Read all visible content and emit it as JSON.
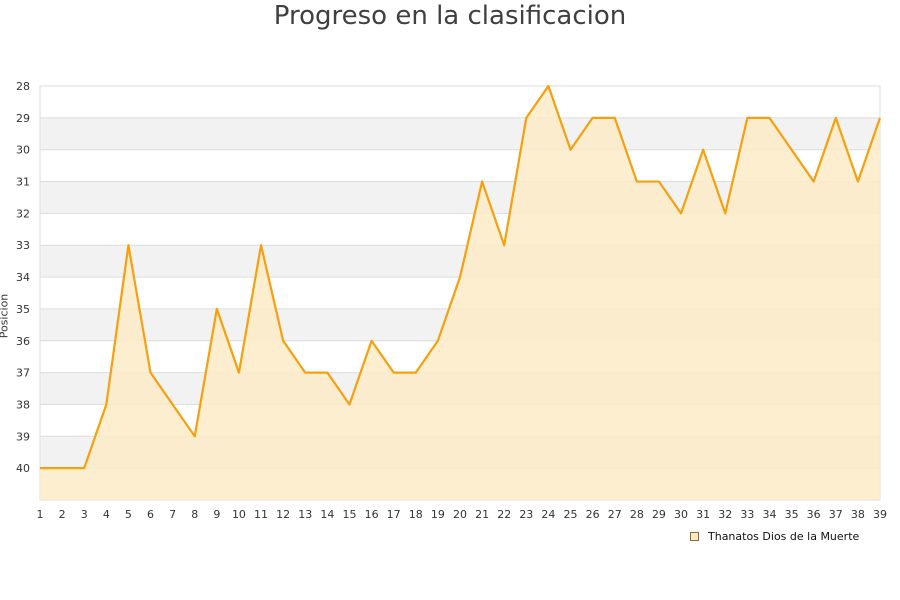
{
  "chart_data": {
    "type": "area",
    "title": "Progreso en la clasificacion",
    "ylabel": "Posicion",
    "xlabel": "",
    "y_inverted": true,
    "ylim": [
      28,
      41
    ],
    "y_ticks": [
      28,
      29,
      30,
      31,
      32,
      33,
      34,
      35,
      36,
      37,
      38,
      39,
      40
    ],
    "x": [
      1,
      2,
      3,
      4,
      5,
      6,
      7,
      8,
      9,
      10,
      11,
      12,
      13,
      14,
      15,
      16,
      17,
      18,
      19,
      20,
      21,
      22,
      23,
      24,
      25,
      26,
      27,
      28,
      29,
      30,
      31,
      32,
      33,
      34,
      35,
      36,
      37,
      38,
      39
    ],
    "series": [
      {
        "name": "Thanatos Dios de la Muerte",
        "values": [
          40,
          40,
          40,
          38,
          33,
          37,
          38,
          39,
          35,
          37,
          33,
          36,
          37,
          37,
          38,
          36,
          37,
          37,
          36,
          34,
          31,
          33,
          29,
          28,
          30,
          29,
          29,
          31,
          31,
          32,
          30,
          32,
          29,
          29,
          30,
          31,
          29,
          31,
          29
        ]
      }
    ],
    "grid": true,
    "legend_position": "bottom-right",
    "colors": {
      "line": "#f5a00f",
      "fill": "#fdebc8",
      "band": "#f2f2f2",
      "grid": "#dddddd"
    }
  }
}
